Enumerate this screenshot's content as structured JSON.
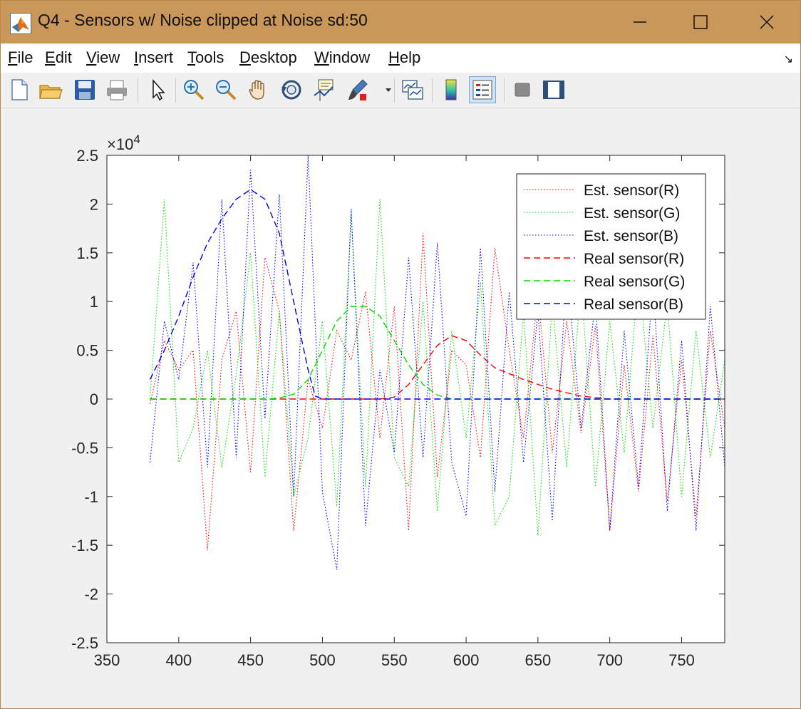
{
  "window": {
    "title": "Q4 - Sensors w/ Noise clipped at Noise sd:50",
    "title_bar_color": "#c9975a"
  },
  "menu": {
    "items": [
      {
        "label": "File"
      },
      {
        "label": "Edit"
      },
      {
        "label": "View"
      },
      {
        "label": "Insert"
      },
      {
        "label": "Tools"
      },
      {
        "label": "Desktop"
      },
      {
        "label": "Window"
      },
      {
        "label": "Help"
      }
    ]
  },
  "toolbar": {
    "icons": [
      "new-figure-icon",
      "open-file-icon",
      "save-icon",
      "print-icon",
      "pointer-icon",
      "zoom-in-icon",
      "zoom-out-icon",
      "pan-hand-icon",
      "rotate-3d-icon",
      "data-cursor-icon",
      "brush-icon",
      "link-plot-icon",
      "colorbar-icon",
      "legend-icon",
      "hide-plot-tools-icon",
      "show-plot-tools-icon"
    ]
  },
  "chart_data": {
    "type": "line",
    "exponent_label": "×10",
    "exponent_power": "4",
    "xlim": [
      350,
      780
    ],
    "ylim": [
      -25000,
      25000
    ],
    "xticks": [
      350,
      400,
      450,
      500,
      550,
      600,
      650,
      700,
      750
    ],
    "yticks": [
      -2.5,
      -2,
      -1.5,
      -1,
      -0.5,
      0,
      0.5,
      1,
      1.5,
      2,
      2.5
    ],
    "legend_position": "top-right",
    "grid": false,
    "series": [
      {
        "name": "Est. sensor(R)",
        "color": "#ff0000",
        "style": "dotted",
        "x": [
          380,
          390,
          400,
          410,
          420,
          430,
          440,
          450,
          460,
          470,
          480,
          490,
          500,
          510,
          520,
          530,
          540,
          550,
          560,
          570,
          580,
          590,
          600,
          610,
          620,
          630,
          640,
          650,
          660,
          670,
          680,
          690,
          700,
          710,
          720,
          730,
          740,
          750,
          760,
          770,
          780
        ],
        "y": [
          -500,
          6000,
          3000,
          5000,
          -15500,
          4000,
          9000,
          -7500,
          14500,
          9000,
          -13500,
          2000,
          -3000,
          7000,
          4000,
          11000,
          -4000,
          9500,
          -13500,
          17000,
          -8000,
          5000,
          3500,
          -6000,
          15500,
          5000,
          -4000,
          11000,
          -5500,
          8000,
          -3500,
          7500,
          -13500,
          3500,
          -9500,
          6500,
          -10500,
          4000,
          -12000,
          7000,
          -3000
        ]
      },
      {
        "name": "Est. sensor(G)",
        "color": "#00dd00",
        "style": "dotted",
        "x": [
          380,
          390,
          400,
          410,
          420,
          430,
          440,
          450,
          460,
          470,
          480,
          490,
          500,
          510,
          520,
          530,
          540,
          550,
          560,
          570,
          580,
          590,
          600,
          610,
          620,
          630,
          640,
          650,
          660,
          670,
          680,
          690,
          700,
          710,
          720,
          730,
          740,
          750,
          760,
          770,
          780
        ],
        "y": [
          0,
          20500,
          -6500,
          -3000,
          5000,
          -7000,
          2500,
          15000,
          -8000,
          9000,
          -10000,
          -4000,
          8000,
          -11000,
          19000,
          -9000,
          20500,
          -6000,
          -9000,
          10000,
          -11500,
          7000,
          -4000,
          12000,
          -13000,
          -10000,
          9000,
          -14000,
          10000,
          -7000,
          12000,
          -9000,
          8000,
          -5500,
          13000,
          -3000,
          10000,
          -10000,
          7000,
          -6000,
          4000
        ]
      },
      {
        "name": "Est. sensor(B)",
        "color": "#0000ff",
        "style": "dotted",
        "x": [
          380,
          390,
          400,
          410,
          420,
          430,
          440,
          450,
          460,
          470,
          480,
          490,
          500,
          510,
          520,
          530,
          540,
          550,
          560,
          570,
          580,
          590,
          600,
          610,
          620,
          630,
          640,
          650,
          660,
          670,
          680,
          690,
          700,
          710,
          720,
          730,
          740,
          750,
          760,
          770,
          780
        ],
        "y": [
          -6500,
          8000,
          2000,
          14000,
          -7000,
          20500,
          -6000,
          23500,
          -2000,
          21000,
          -10000,
          25000,
          -9500,
          -17500,
          19500,
          -13000,
          3000,
          -5500,
          14500,
          -6000,
          16000,
          -6500,
          -12000,
          15500,
          -9500,
          11000,
          -6500,
          9000,
          -12500,
          13500,
          -3000,
          10000,
          -13500,
          7000,
          -9000,
          12000,
          -11500,
          6000,
          -13500,
          9500,
          -7000
        ]
      },
      {
        "name": "Real sensor(R)",
        "color": "#ff0000",
        "style": "dashed",
        "x": [
          380,
          470,
          490,
          500,
          520,
          540,
          550,
          560,
          570,
          580,
          590,
          600,
          610,
          620,
          640,
          660,
          680,
          700,
          720,
          740,
          760,
          780
        ],
        "y": [
          0,
          0,
          0,
          0,
          0,
          0,
          200,
          1500,
          3500,
          5500,
          6500,
          6000,
          4500,
          3200,
          2000,
          1000,
          300,
          0,
          0,
          0,
          0,
          0
        ]
      },
      {
        "name": "Real sensor(G)",
        "color": "#00dd00",
        "style": "dashed",
        "x": [
          380,
          460,
          470,
          480,
          490,
          500,
          510,
          520,
          530,
          540,
          550,
          560,
          570,
          580,
          590,
          600,
          780
        ],
        "y": [
          0,
          0,
          100,
          500,
          2000,
          5000,
          8000,
          9500,
          9500,
          8500,
          6000,
          3500,
          1500,
          400,
          0,
          0,
          0
        ]
      },
      {
        "name": "Real sensor(B)",
        "color": "#0000ff",
        "style": "dashed",
        "x": [
          380,
          390,
          400,
          410,
          420,
          430,
          440,
          450,
          460,
          470,
          480,
          490,
          495,
          500,
          520,
          540,
          560,
          580,
          600,
          640,
          680,
          720,
          760,
          780
        ],
        "y": [
          2000,
          5000,
          8500,
          12500,
          16000,
          18500,
          20500,
          21500,
          20500,
          17000,
          10000,
          3000,
          300,
          0,
          0,
          0,
          0,
          0,
          0,
          0,
          0,
          0,
          0,
          0
        ]
      }
    ]
  }
}
